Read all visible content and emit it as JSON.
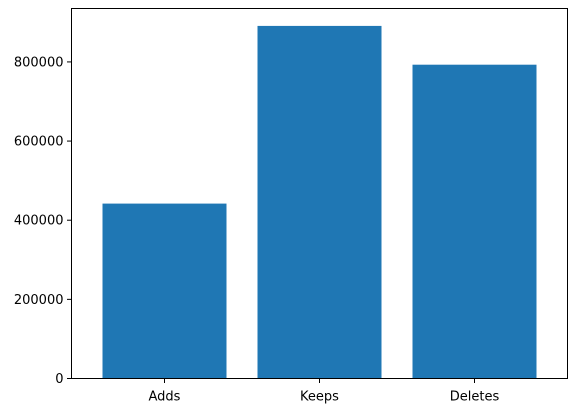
{
  "chart_data": {
    "type": "bar",
    "categories": [
      "Adds",
      "Keeps",
      "Deletes"
    ],
    "values": [
      442000,
      891000,
      793000
    ],
    "ylim": [
      0,
      935000
    ],
    "yticks": [
      0,
      200000,
      400000,
      600000,
      800000
    ],
    "ytick_labels": [
      "0",
      "200000",
      "400000",
      "600000",
      "800000"
    ],
    "bar_color": "#1f77b4",
    "grid": false,
    "legend": "none"
  }
}
